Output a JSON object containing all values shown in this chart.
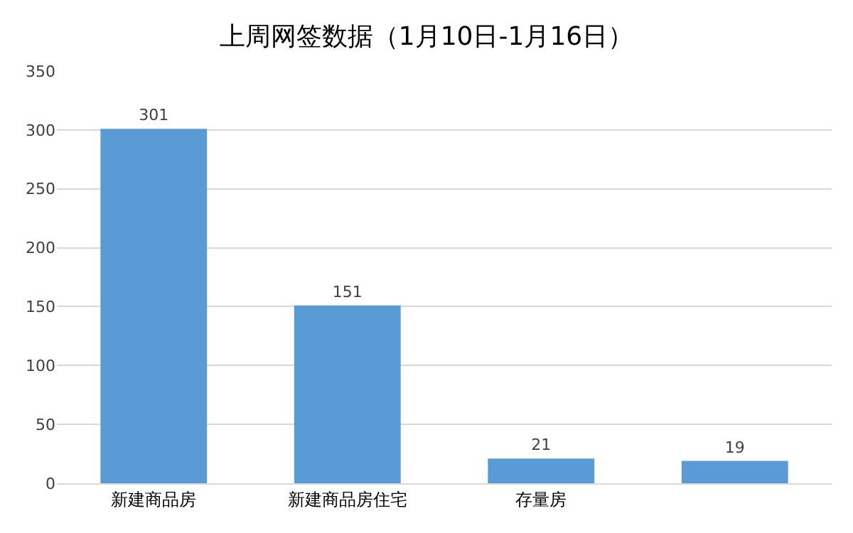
{
  "chart_data": {
    "type": "bar",
    "title": "上周网签数据（1月10日-1月16日）",
    "categories": [
      "新建商品房",
      "新建商品房住宅",
      "存量房",
      null
    ],
    "values": [
      301,
      151,
      21,
      19
    ],
    "color": "#5b9bd5",
    "ylim": [
      0,
      350
    ],
    "yticks": [
      0,
      50,
      100,
      150,
      200,
      250,
      300,
      350
    ],
    "grid": "y",
    "data_labels": true
  }
}
